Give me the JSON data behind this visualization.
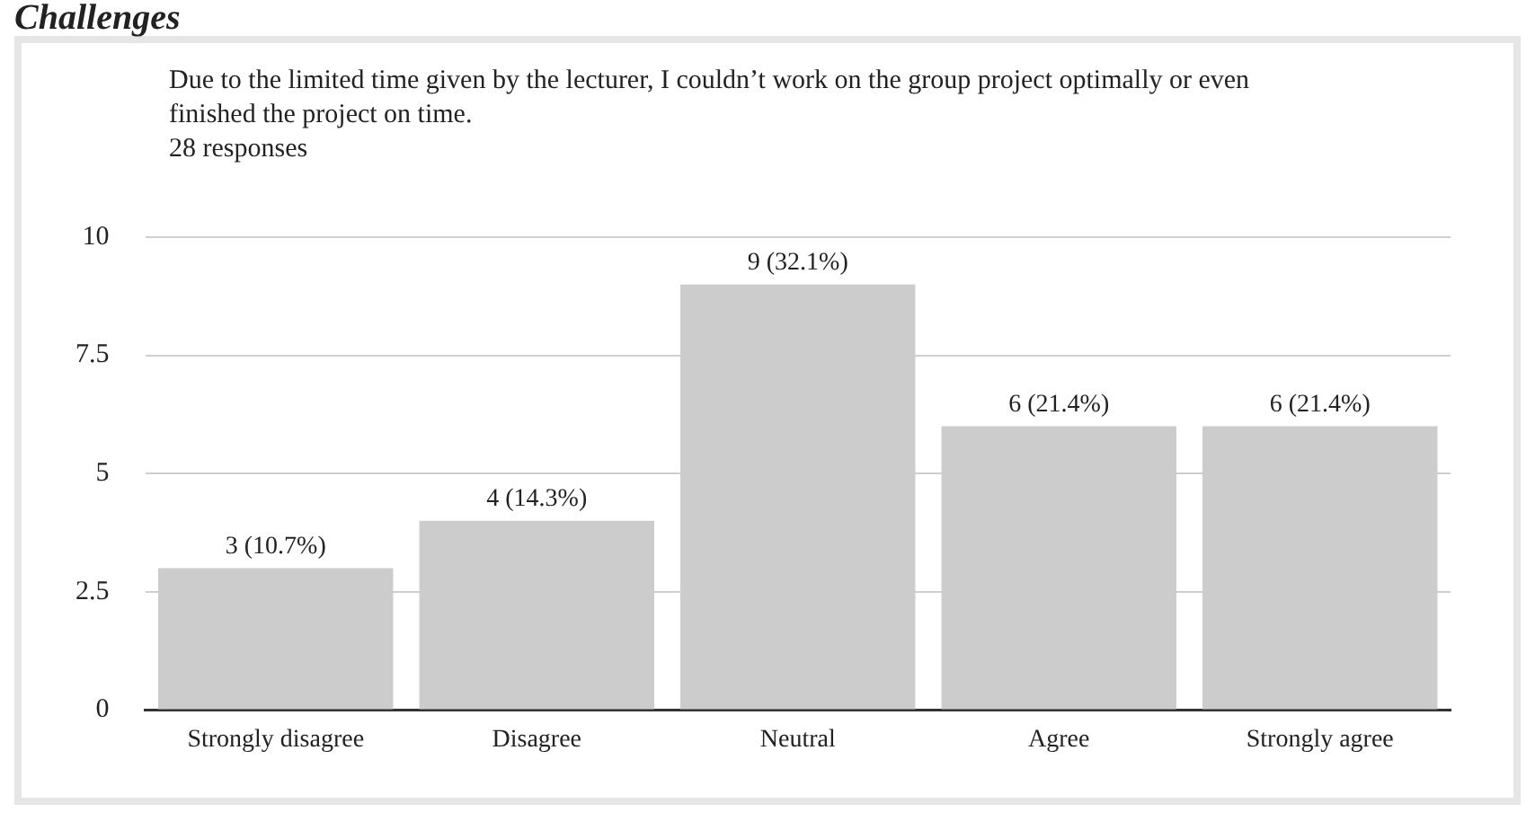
{
  "chart_data": {
    "type": "bar",
    "title": "Due to the limited time given by the lecturer, I couldn’t work on the group project optimally or even finished the project on time.",
    "subtitle": "28 responses",
    "annotations": [
      "Challenges"
    ],
    "categories": [
      "Strongly disagree",
      "Disagree",
      "Neutral",
      "Agree",
      "Strongly agree"
    ],
    "values": [
      3,
      4,
      9,
      6,
      6
    ],
    "color": "#cccccc",
    "value_labels": [
      "3 (10.7%)",
      "4 (14.3%)",
      "9 (32.1%)",
      "6 (21.4%)",
      "6 (21.4%)"
    ],
    "ylim": [
      0,
      10
    ],
    "yticks": [
      0,
      2.5,
      5,
      7.5,
      10
    ],
    "grid": "y",
    "legend": false
  }
}
